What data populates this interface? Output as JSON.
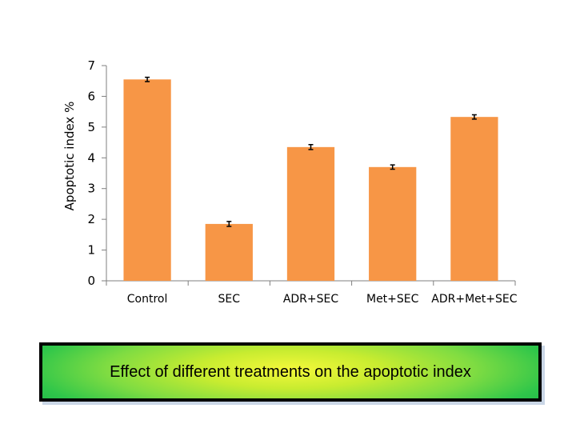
{
  "chart_data": {
    "type": "bar",
    "categories": [
      "Control",
      "SEC",
      "ADR+SEC",
      "Met+SEC",
      "ADR+Met+SEC"
    ],
    "values": [
      6.55,
      1.85,
      4.35,
      3.7,
      5.33
    ],
    "errors": [
      0.07,
      0.08,
      0.08,
      0.07,
      0.07
    ],
    "title": "",
    "xlabel": "",
    "ylabel": "Apoptotic index %",
    "ylim": [
      0,
      7
    ],
    "yticks": [
      0,
      1,
      2,
      3,
      4,
      5,
      6,
      7
    ],
    "grid": false,
    "legend": "none",
    "bar_color": "#f79646",
    "error_color": "#000000"
  },
  "caption": {
    "text": "Effect of different treatments on the apoptotic index"
  }
}
